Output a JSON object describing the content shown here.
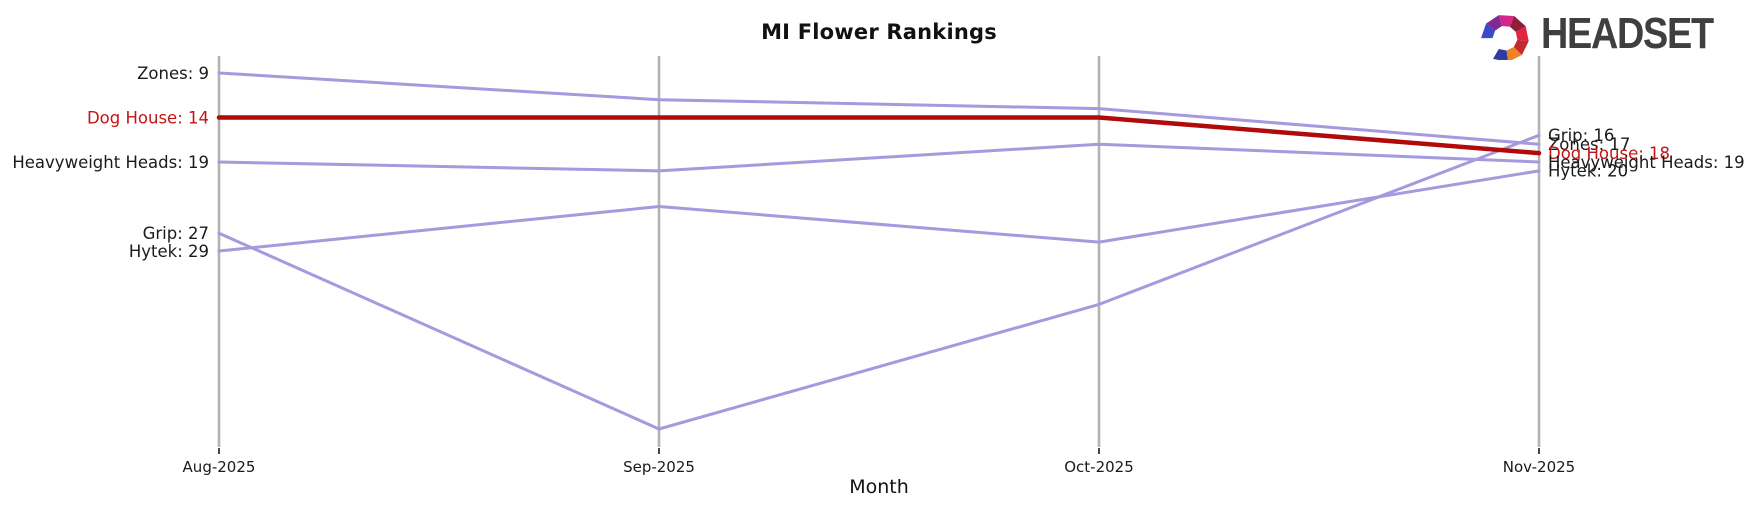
{
  "logo": {
    "wordmark": "HEADSET"
  },
  "chart_data": {
    "type": "line",
    "variant": "bump-rank",
    "title": "MI Flower Rankings",
    "xlabel": "Month",
    "x": [
      "Aug-2025",
      "Sep-2025",
      "Oct-2025",
      "Nov-2025"
    ],
    "rank_axis": {
      "inverted": true,
      "lower_rank_is_better": true,
      "visible_rank_range": [
        9,
        49
      ],
      "y_tick_labels": "none"
    },
    "legend_position": "inline-endpoint-labels",
    "grid": "vertical-month-lines",
    "series": [
      {
        "name": "Zones",
        "values": [
          9,
          12,
          13,
          17
        ],
        "highlight": false,
        "left_label": "Zones: 9",
        "right_label": "Zones: 17"
      },
      {
        "name": "Dog House",
        "values": [
          14,
          14,
          14,
          18
        ],
        "highlight": true,
        "left_label": "Dog House: 14",
        "right_label": "Dog House: 18"
      },
      {
        "name": "Heavyweight Heads",
        "values": [
          19,
          20,
          17,
          19
        ],
        "highlight": false,
        "left_label": "Heavyweight Heads: 19",
        "right_label": "Heavyweight Heads: 19"
      },
      {
        "name": "Grip",
        "values": [
          27,
          49,
          35,
          16
        ],
        "highlight": false,
        "left_label": "Grip: 27",
        "right_label": "Grip: 16"
      },
      {
        "name": "Hytek",
        "values": [
          29,
          24,
          28,
          20
        ],
        "highlight": false,
        "left_label": "Hytek: 29",
        "right_label": "Hytek: 20"
      }
    ],
    "colors": {
      "line": "#a49add",
      "highlight_line": "#b10a0a",
      "label_text": "#1a1a1a",
      "highlight_label_text": "#c41414",
      "gridline": "#b3b3b3",
      "tick": "#333333",
      "tick_text": "#1a1a1a"
    }
  },
  "logo_icon": {
    "name": "headset-faceted-horseshoe",
    "facet_colors": [
      "#2f3e9e",
      "#f08124",
      "#c02a30",
      "#e0263f",
      "#8f1e38",
      "#d4268d",
      "#7e2a94",
      "#3c49c9"
    ]
  }
}
